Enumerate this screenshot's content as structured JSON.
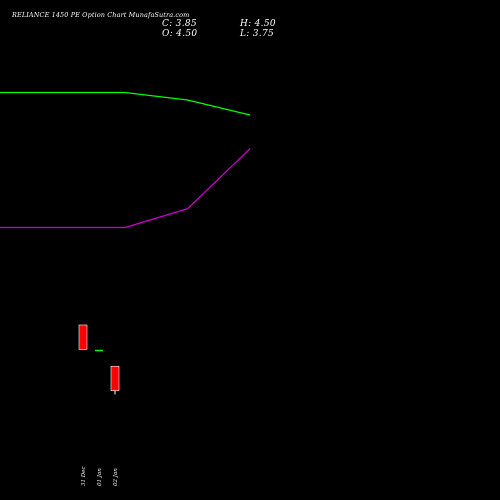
{
  "header": {
    "title": "RELIANCE 1450  PE Option  Chart MunafaSutra.com",
    "close": "C: 3.85",
    "high": "H: 4.50",
    "open": "O: 4.50",
    "low": "L: 3.75"
  },
  "colors": {
    "background": "#000000",
    "ma_short": "#00ff00",
    "ma_long": "#cc00cc",
    "bear_candle": "#ff0000",
    "bull_candle": "#00ff00",
    "text": "#ffffff"
  },
  "chart_data": {
    "type": "candlestick",
    "categories": [
      "31 Dec",
      "01 Jan",
      "02 Jan"
    ],
    "candles": [
      {
        "date": "31 Dec",
        "open": 5.6,
        "high": 5.6,
        "low": 4.95,
        "close": 4.95,
        "color": "red"
      },
      {
        "date": "01 Jan",
        "open": 4.92,
        "high": 4.92,
        "low": 4.92,
        "close": 4.92,
        "color": "green"
      },
      {
        "date": "02 Jan",
        "open": 4.5,
        "high": 4.5,
        "low": 3.75,
        "close": 3.85,
        "color": "red"
      }
    ],
    "overlay_lines": [
      {
        "color": "green",
        "x": [
          -1.5,
          -0.5,
          0.5,
          1.5,
          2.5
        ],
        "values": [
          11.8,
          11.8,
          11.8,
          11.6,
          11.2
        ]
      },
      {
        "color": "purple",
        "x": [
          -1.5,
          -0.5,
          0.5,
          1.5,
          2.5
        ],
        "values": [
          8.2,
          8.2,
          8.2,
          8.7,
          10.3
        ]
      }
    ],
    "ylim": [
      2.0,
      13.2
    ],
    "grid": false,
    "legend": "none",
    "xlabel": "",
    "ylabel": ""
  }
}
